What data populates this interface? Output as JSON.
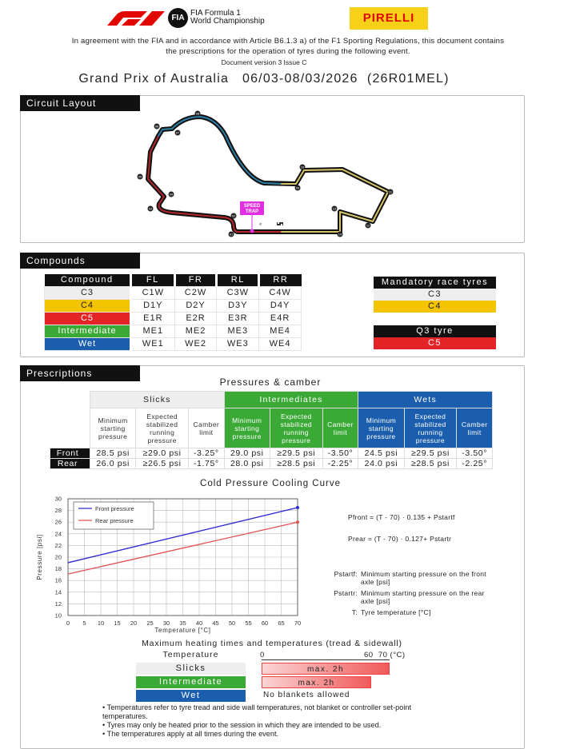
{
  "header": {
    "logo_f1": "F1",
    "logo_fia": "FIA",
    "fia_text_line1": "FIA Formula 1",
    "fia_text_line2": "World Championship",
    "fia_tm": "TM",
    "pirelli": "PIRELLI",
    "intro_line1": "In agreement with the FIA and in accordance with Article B6.1.3 a) of the F1 Sporting Regulations, this document contains",
    "intro_line2": "the prescriptions for the operation of tyres during the following event.",
    "doc_version": "Document version 3 Issue C",
    "title": "Grand Prix of Australia   06/03-08/03/2026  (26R01MEL)"
  },
  "circuit": {
    "section_title": "Circuit Layout",
    "speed_trap": [
      "SPEED",
      "TRAP"
    ],
    "turns": [
      "01",
      "02",
      "03",
      "04",
      "05",
      "06",
      "07",
      "08",
      "09",
      "10",
      "11",
      "12",
      "13",
      "14"
    ],
    "sector_colors": [
      "#b0262b",
      "#2f7ea6",
      "#d6c46a"
    ]
  },
  "compounds": {
    "section_title": "Compounds",
    "headers": [
      "Compound",
      "FL",
      "FR",
      "RL",
      "RR"
    ],
    "rows": [
      {
        "name": "C3",
        "color": "#eeeeee",
        "text": "#222",
        "cells": [
          "C1W",
          "C2W",
          "C3W",
          "C4W"
        ]
      },
      {
        "name": "C4",
        "color": "#f5c400",
        "text": "#222",
        "cells": [
          "D1Y",
          "D2Y",
          "D3Y",
          "D4Y"
        ]
      },
      {
        "name": "C5",
        "color": "#e42326",
        "text": "#fff",
        "cells": [
          "E1R",
          "E2R",
          "E3R",
          "E4R"
        ]
      },
      {
        "name": "Intermediate",
        "color": "#3aa935",
        "text": "#fff",
        "cells": [
          "ME1",
          "ME2",
          "ME3",
          "ME4"
        ]
      },
      {
        "name": "Wet",
        "color": "#1b5ead",
        "text": "#fff",
        "cells": [
          "WE1",
          "WE2",
          "WE3",
          "WE4"
        ]
      }
    ],
    "mandatory": {
      "title": "Mandatory race tyres",
      "items": [
        "C3",
        "C4"
      ]
    },
    "q3": {
      "title": "Q3 tyre",
      "item": "C5"
    }
  },
  "prescriptions": {
    "section_title": "Prescriptions",
    "table_title": "Pressures & camber",
    "groups": [
      "Slicks",
      "Intermediates",
      "Wets"
    ],
    "subheaders": [
      "Minimum starting pressure",
      "Expected stabilized running pressure",
      "Camber limit"
    ],
    "rows": [
      {
        "label": "Front",
        "values": [
          "28.5 psi",
          "≥29.0 psi",
          "-3.25°",
          "29.0 psi",
          "≥29.5 psi",
          "-3.50°",
          "24.5 psi",
          "≥29.5 psi",
          "-3.50°"
        ]
      },
      {
        "label": "Rear",
        "values": [
          "26.0 psi",
          "≥26.5 psi",
          "-1.75°",
          "28.0 psi",
          "≥28.5 psi",
          "-2.25°",
          "24.0 psi",
          "≥28.5 psi",
          "-2.25°"
        ]
      }
    ]
  },
  "chart_data": {
    "type": "line",
    "title": "Cold Pressure Cooling Curve",
    "xlabel": "Temperature [°C]",
    "ylabel": "Pressure [psi]",
    "xlim": [
      0,
      70
    ],
    "ylim": [
      10,
      30
    ],
    "grid": true,
    "legend": "top-left",
    "xticks": [
      0,
      5,
      10,
      15,
      20,
      25,
      30,
      35,
      40,
      45,
      50,
      55,
      60,
      65,
      70
    ],
    "yticks": [
      10,
      12,
      14,
      16,
      18,
      20,
      22,
      24,
      26,
      28,
      30
    ],
    "series": [
      {
        "name": "Front pressure",
        "color": "#2a2ad0",
        "x": [
          0,
          70
        ],
        "y": [
          19.05,
          28.5
        ]
      },
      {
        "name": "Rear pressure",
        "color": "#e05050",
        "x": [
          0,
          70
        ],
        "y": [
          17.11,
          26.0
        ]
      }
    ]
  },
  "formulas": {
    "front": "Pfront = (T - 70) · 0.135 + Pstartf",
    "rear": "Prear = (T - 70) · 0.127+ Pstartr",
    "defs": [
      {
        "key": "Pstartf:",
        "text": "Minimum starting pressure on the front axle [psi]"
      },
      {
        "key": "Pstartr:",
        "text": "Minimum starting pressure on the rear axle [psi]"
      },
      {
        "key": "T:",
        "text": "Tyre temperature [°C]"
      }
    ]
  },
  "heating": {
    "title": "Maximum heating times and temperatures (tread & sidewall)",
    "temp_label": "Temperature",
    "scale_labels": [
      "0",
      "60  70 (°C)"
    ],
    "rows": [
      {
        "name": "Slicks",
        "color": "#eeeeee",
        "text": "#222",
        "max_temp": 70,
        "label": "max. 2h"
      },
      {
        "name": "Intermediate",
        "color": "#3aa935",
        "text": "#fff",
        "max_temp": 60,
        "label": "max. 2h"
      },
      {
        "name": "Wet",
        "color": "#1b5ead",
        "text": "#fff",
        "label": "No blankets allowed"
      }
    ],
    "notes": [
      "• Temperatures refer to tyre tread and side wall temperatures, not blanket or controller set-point temperatures.",
      "• Tyres may only be heated prior to the session in which they are intended to be used.",
      "• The temperatures apply at all times during the event."
    ]
  }
}
